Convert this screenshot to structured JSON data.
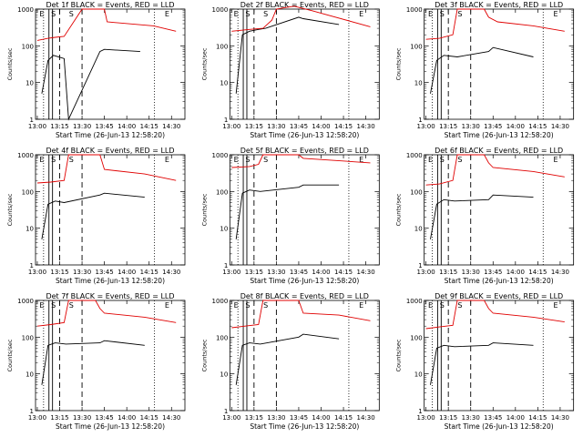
{
  "colors": {
    "events": "#000000",
    "lld": "#e00000",
    "axis": "#000000",
    "background": "#ffffff"
  },
  "chart_data": [
    {
      "type": "line",
      "title": "Det 1f BLACK = Events, RED = LLD",
      "xlabel": "Start Time (26-Jun-13 12:58:20)",
      "ylabel": "Counts/sec",
      "x_ticks": [
        "13:00",
        "13:15",
        "13:30",
        "13:45",
        "14:00",
        "14:15",
        "14:30"
      ],
      "y_ticks": [
        "1",
        "10",
        "100",
        "1000"
      ],
      "ylim": [
        1,
        1000
      ],
      "yscale": "log",
      "markers": [
        "E",
        "S",
        "S",
        "E"
      ],
      "series": [
        {
          "color": "black",
          "x": [
            13.05,
            13.12,
            13.18,
            13.3,
            13.35,
            13.7,
            13.75,
            14.15
          ],
          "y": [
            5,
            40,
            55,
            45,
            0,
            70,
            80,
            70
          ]
        },
        {
          "color": "red",
          "x": [
            13.0,
            13.12,
            13.2,
            13.3,
            13.5,
            13.75,
            13.78,
            14.3,
            14.55
          ],
          "y": [
            140,
            160,
            170,
            180,
            1000,
            1000,
            450,
            350,
            250
          ]
        }
      ]
    },
    {
      "type": "line",
      "title": "Det 2f BLACK = Events, RED = LLD",
      "xlabel": "Start Time (26-Jun-13 12:58:20)",
      "ylabel": "Counts/sec",
      "x_ticks": [
        "13:00",
        "13:15",
        "13:30",
        "13:45",
        "14:00",
        "14:15",
        "14:30"
      ],
      "y_ticks": [
        "1",
        "10",
        "100",
        "1000"
      ],
      "ylim": [
        1,
        1000
      ],
      "yscale": "log",
      "markers": [
        "E",
        "S",
        "S",
        "E"
      ],
      "series": [
        {
          "color": "black",
          "x": [
            13.05,
            13.12,
            13.2,
            13.3,
            13.38,
            13.75,
            13.8,
            14.2
          ],
          "y": [
            5,
            200,
            250,
            280,
            300,
            600,
            550,
            380
          ]
        },
        {
          "color": "red",
          "x": [
            13.0,
            13.2,
            13.35,
            13.45,
            13.5,
            13.6,
            13.7,
            13.9,
            14.55
          ],
          "y": [
            250,
            280,
            300,
            500,
            1000,
            1100,
            1200,
            900,
            330
          ]
        }
      ]
    },
    {
      "type": "line",
      "title": "Det 3f BLACK = Events, RED = LLD",
      "xlabel": "Start Time (26-Jun-13 12:58:20)",
      "ylabel": "Counts/sec",
      "x_ticks": [
        "13:00",
        "13:15",
        "13:30",
        "13:45",
        "14:00",
        "14:15",
        "14:30"
      ],
      "y_ticks": [
        "1",
        "10",
        "100",
        "1000"
      ],
      "ylim": [
        1,
        1000
      ],
      "yscale": "log",
      "markers": [
        "E",
        "S",
        "S",
        "E"
      ],
      "series": [
        {
          "color": "black",
          "x": [
            13.05,
            13.12,
            13.2,
            13.35,
            13.7,
            13.75,
            14.2
          ],
          "y": [
            5,
            40,
            55,
            50,
            70,
            90,
            50
          ]
        },
        {
          "color": "red",
          "x": [
            13.0,
            13.15,
            13.3,
            13.35,
            13.65,
            13.7,
            13.8,
            14.2,
            14.55
          ],
          "y": [
            150,
            160,
            200,
            1000,
            1000,
            600,
            450,
            350,
            250
          ]
        }
      ]
    },
    {
      "type": "line",
      "title": "Det 4f BLACK = Events, RED = LLD",
      "xlabel": "Start Time (26-Jun-13 12:58:20)",
      "ylabel": "Counts/sec",
      "x_ticks": [
        "13:00",
        "13:15",
        "13:30",
        "13:45",
        "14:00",
        "14:15",
        "14:30"
      ],
      "y_ticks": [
        "1",
        "10",
        "100",
        "1000"
      ],
      "ylim": [
        1,
        1000
      ],
      "yscale": "log",
      "markers": [
        "E",
        "S",
        "S",
        "E"
      ],
      "series": [
        {
          "color": "black",
          "x": [
            13.05,
            13.12,
            13.2,
            13.3,
            13.7,
            13.75,
            14.2
          ],
          "y": [
            5,
            45,
            55,
            50,
            80,
            90,
            70
          ]
        },
        {
          "color": "red",
          "x": [
            13.0,
            13.15,
            13.3,
            13.35,
            13.7,
            13.75,
            14.2,
            14.55
          ],
          "y": [
            170,
            180,
            200,
            1000,
            1000,
            400,
            300,
            200
          ]
        }
      ]
    },
    {
      "type": "line",
      "title": "Det 5f BLACK = Events, RED = LLD",
      "xlabel": "Start Time (26-Jun-13 12:58:20)",
      "ylabel": "Counts/sec",
      "x_ticks": [
        "13:00",
        "13:15",
        "13:30",
        "13:45",
        "14:00",
        "14:15",
        "14:30"
      ],
      "y_ticks": [
        "1",
        "10",
        "100",
        "1000"
      ],
      "ylim": [
        1,
        1000
      ],
      "yscale": "log",
      "markers": [
        "E",
        "S",
        "S",
        "E"
      ],
      "series": [
        {
          "color": "black",
          "x": [
            13.05,
            13.12,
            13.2,
            13.32,
            13.75,
            13.8,
            14.2
          ],
          "y": [
            5,
            90,
            110,
            100,
            130,
            150,
            150
          ]
        },
        {
          "color": "red",
          "x": [
            13.0,
            13.2,
            13.3,
            13.35,
            13.75,
            13.8,
            14.55
          ],
          "y": [
            450,
            480,
            550,
            1000,
            1000,
            800,
            600
          ]
        }
      ]
    },
    {
      "type": "line",
      "title": "Det 6f BLACK = Events, RED = LLD",
      "xlabel": "Start Time (26-Jun-13 12:58:20)",
      "ylabel": "Counts/sec",
      "x_ticks": [
        "13:00",
        "13:15",
        "13:30",
        "13:45",
        "14:00",
        "14:15",
        "14:30"
      ],
      "y_ticks": [
        "1",
        "10",
        "100",
        "1000"
      ],
      "ylim": [
        1,
        1000
      ],
      "yscale": "log",
      "markers": [
        "E",
        "S",
        "S",
        "E"
      ],
      "series": [
        {
          "color": "black",
          "x": [
            13.05,
            13.12,
            13.2,
            13.32,
            13.7,
            13.75,
            14.2
          ],
          "y": [
            5,
            45,
            60,
            55,
            60,
            80,
            70
          ]
        },
        {
          "color": "red",
          "x": [
            13.0,
            13.15,
            13.3,
            13.35,
            13.65,
            13.7,
            13.75,
            14.2,
            14.55
          ],
          "y": [
            150,
            160,
            200,
            1000,
            1000,
            600,
            450,
            350,
            250
          ]
        }
      ]
    },
    {
      "type": "line",
      "title": "Det 7f BLACK = Events, RED = LLD",
      "xlabel": "Start Time (26-Jun-13 12:58:20)",
      "ylabel": "Counts/sec",
      "x_ticks": [
        "13:00",
        "13:15",
        "13:30",
        "13:45",
        "14:00",
        "14:15",
        "14:30"
      ],
      "y_ticks": [
        "1",
        "10",
        "100",
        "1000"
      ],
      "ylim": [
        1,
        1000
      ],
      "yscale": "log",
      "markers": [
        "E",
        "S",
        "S",
        "E"
      ],
      "series": [
        {
          "color": "black",
          "x": [
            13.05,
            13.12,
            13.2,
            13.32,
            13.7,
            13.75,
            14.2
          ],
          "y": [
            5,
            60,
            70,
            65,
            70,
            80,
            60
          ]
        },
        {
          "color": "red",
          "x": [
            13.0,
            13.15,
            13.3,
            13.35,
            13.65,
            13.7,
            13.75,
            14.2,
            14.55
          ],
          "y": [
            200,
            220,
            250,
            1000,
            1000,
            600,
            450,
            350,
            250
          ]
        }
      ]
    },
    {
      "type": "line",
      "title": "Det 8f BLACK = Events, RED = LLD",
      "xlabel": "Start Time (26-Jun-13 12:58:20)",
      "ylabel": "Counts/sec",
      "x_ticks": [
        "13:00",
        "13:15",
        "13:30",
        "13:45",
        "14:00",
        "14:15",
        "14:30"
      ],
      "y_ticks": [
        "1",
        "10",
        "100",
        "1000"
      ],
      "ylim": [
        1,
        1000
      ],
      "yscale": "log",
      "markers": [
        "E",
        "S",
        "S",
        "E"
      ],
      "series": [
        {
          "color": "black",
          "x": [
            13.05,
            13.12,
            13.2,
            13.32,
            13.75,
            13.8,
            14.2
          ],
          "y": [
            5,
            60,
            70,
            65,
            100,
            120,
            90
          ]
        },
        {
          "color": "red",
          "x": [
            13.0,
            13.15,
            13.3,
            13.35,
            13.75,
            13.8,
            14.2,
            14.55
          ],
          "y": [
            180,
            200,
            220,
            1000,
            1000,
            450,
            400,
            280
          ]
        }
      ]
    },
    {
      "type": "line",
      "title": "Det 9f BLACK = Events, RED = LLD",
      "xlabel": "Start Time (26-Jun-13 12:58:20)",
      "ylabel": "Counts/sec",
      "x_ticks": [
        "13:00",
        "13:15",
        "13:30",
        "13:45",
        "14:00",
        "14:15",
        "14:30"
      ],
      "y_ticks": [
        "1",
        "10",
        "100",
        "1000"
      ],
      "ylim": [
        1,
        1000
      ],
      "yscale": "log",
      "markers": [
        "E",
        "S",
        "S",
        "E"
      ],
      "series": [
        {
          "color": "black",
          "x": [
            13.05,
            13.12,
            13.2,
            13.32,
            13.7,
            13.75,
            14.2
          ],
          "y": [
            5,
            50,
            60,
            55,
            60,
            70,
            60
          ]
        },
        {
          "color": "red",
          "x": [
            13.0,
            13.15,
            13.3,
            13.35,
            13.65,
            13.7,
            13.75,
            14.2,
            14.55
          ],
          "y": [
            170,
            190,
            210,
            1000,
            1000,
            600,
            450,
            350,
            260
          ]
        }
      ]
    }
  ]
}
